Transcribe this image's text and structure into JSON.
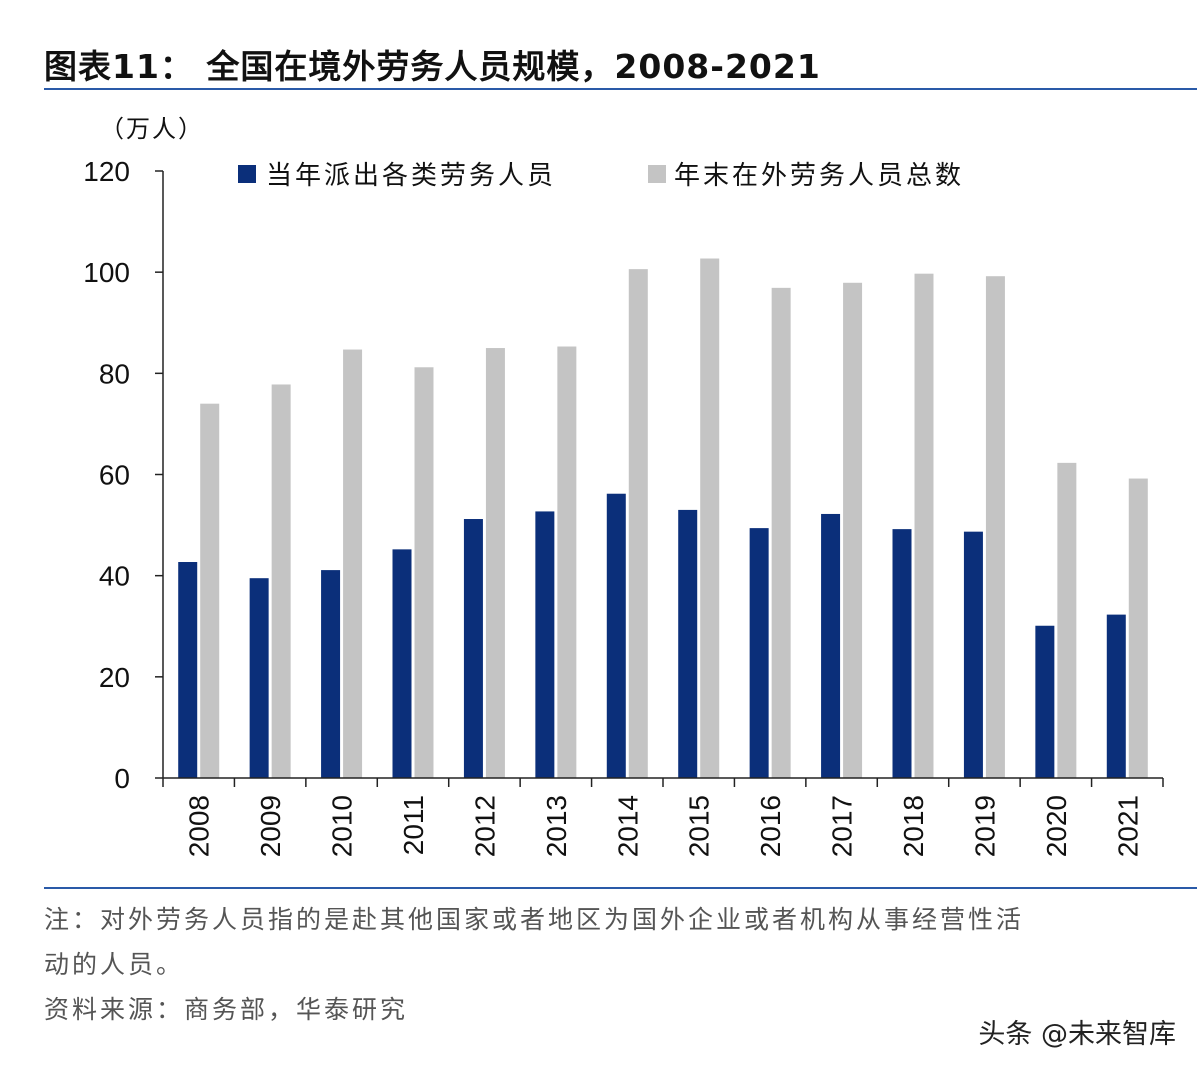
{
  "header": {
    "title": "图表11： 全国在境外劳务人员规模，2008-2021"
  },
  "chart_data": {
    "type": "bar",
    "unit_label": "（万人）",
    "categories": [
      "2008",
      "2009",
      "2010",
      "2011",
      "2012",
      "2013",
      "2014",
      "2015",
      "2016",
      "2017",
      "2018",
      "2019",
      "2020",
      "2021"
    ],
    "series": [
      {
        "name": "当年派出各类劳务人员",
        "color": "#0b2f7a",
        "values": [
          42.7,
          39.5,
          41.1,
          45.2,
          51.2,
          52.7,
          56.2,
          53.0,
          49.4,
          52.2,
          49.2,
          48.7,
          30.1,
          32.3
        ]
      },
      {
        "name": "年末在外劳务人员总数",
        "color": "#c4c4c4",
        "values": [
          74.0,
          77.8,
          84.7,
          81.2,
          85.0,
          85.3,
          100.6,
          102.7,
          96.9,
          97.9,
          99.7,
          99.2,
          62.3,
          59.2
        ]
      }
    ],
    "yticks": [
      "0",
      "20",
      "40",
      "60",
      "80",
      "100",
      "120"
    ],
    "ylim": [
      0,
      120
    ],
    "grid": false,
    "legend_position": "top"
  },
  "footer": {
    "note_line1": "注：对外劳务人员指的是赴其他国家或者地区为国外企业或者机构从事经营性活",
    "note_line2": "动的人员。",
    "source": "资料来源：商务部，华泰研究"
  },
  "watermark": "头条 @未来智库"
}
